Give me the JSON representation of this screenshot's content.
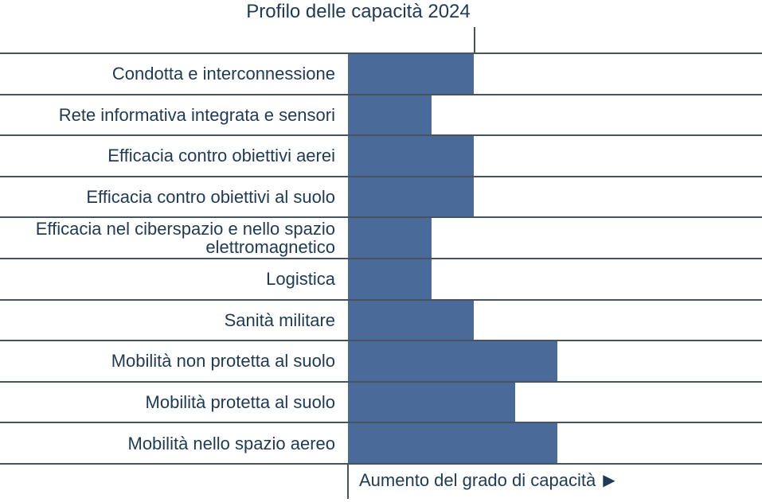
{
  "title": "Profilo delle capacità 2024",
  "axis": {
    "label": "Aumento del grado di capacità",
    "arrow_icon": "▶"
  },
  "colors": {
    "bar": "#4a6b9a",
    "grid": "#47545f",
    "text": "#1e3a55",
    "background": "#ffffff"
  },
  "chart_data": {
    "type": "bar",
    "orientation": "horizontal",
    "title": "Profilo delle capacità 2024",
    "categories": [
      "Condotta e interconnessione",
      "Rete informativa integrata e sensori",
      "Efficacia contro obiettivi aerei",
      "Efficacia contro obiettivi al suolo",
      "Efficacia nel ciberspazio e nello spazio elettromagnetico",
      "Logistica",
      "Sanità militare",
      "Mobilità non protetta al suolo",
      "Mobilità protetta al suolo",
      "Mobilità nello spazio aereo"
    ],
    "values": [
      3,
      2,
      3,
      3,
      2,
      2,
      3,
      5,
      4,
      5
    ],
    "reference_value": 3,
    "value_axis_label": "Aumento del grado di capacità",
    "xlim": [
      0,
      9.9
    ],
    "grid": true,
    "legend": false,
    "data_labels": false
  }
}
